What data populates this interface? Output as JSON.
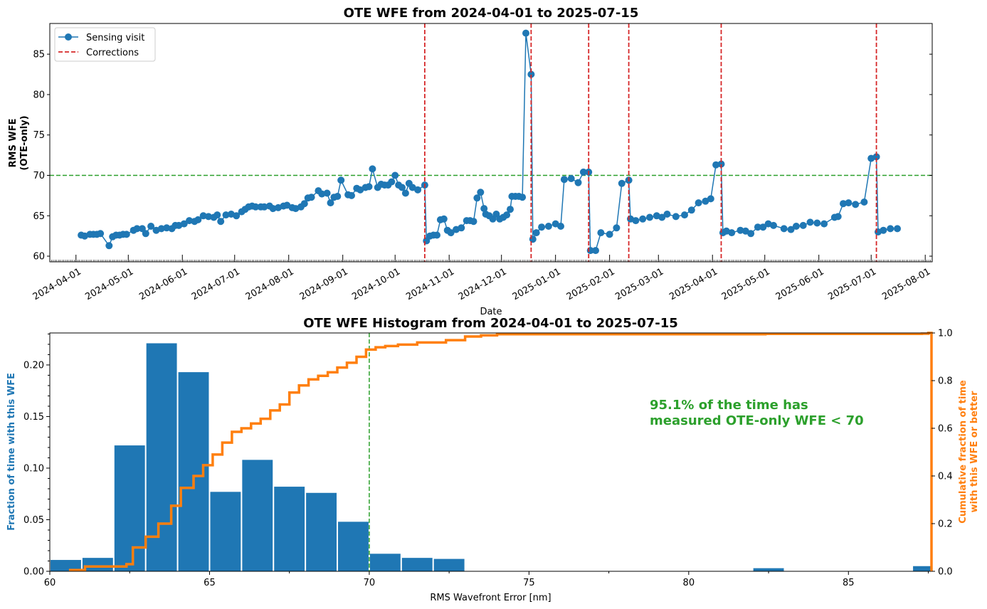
{
  "chart_data": [
    {
      "type": "line",
      "title": "OTE WFE from 2024-04-01 to 2025-07-15",
      "xlabel": "Date",
      "ylabel": "RMS WFE\n(OTE-only)",
      "xlim": [
        "2024-03-17",
        "2025-08-05"
      ],
      "ylim": [
        59.3,
        88.8
      ],
      "yticks": [
        60,
        65,
        70,
        75,
        80,
        85
      ],
      "xticks": [
        "2024-04-01",
        "2024-05-01",
        "2024-06-01",
        "2024-07-01",
        "2024-08-01",
        "2024-09-01",
        "2024-10-01",
        "2024-11-01",
        "2024-12-01",
        "2025-01-01",
        "2025-02-01",
        "2025-03-01",
        "2025-04-01",
        "2025-05-01",
        "2025-06-01",
        "2025-07-01",
        "2025-08-01"
      ],
      "legend_position": "top-left",
      "colors": {
        "series": "#1f77b4",
        "corrections": "#d62728",
        "threshold": "#2ca02c"
      },
      "series": [
        {
          "name": "Sensing visit",
          "points": [
            [
              "2024-04-04",
              62.6
            ],
            [
              "2024-04-06",
              62.5
            ],
            [
              "2024-04-09",
              62.7
            ],
            [
              "2024-04-11",
              62.7
            ],
            [
              "2024-04-13",
              62.7
            ],
            [
              "2024-04-15",
              62.8
            ],
            [
              "2024-04-20",
              61.3
            ],
            [
              "2024-04-22",
              62.4
            ],
            [
              "2024-04-24",
              62.6
            ],
            [
              "2024-04-26",
              62.6
            ],
            [
              "2024-04-28",
              62.7
            ],
            [
              "2024-04-30",
              62.7
            ],
            [
              "2024-05-04",
              63.2
            ],
            [
              "2024-05-06",
              63.4
            ],
            [
              "2024-05-09",
              63.4
            ],
            [
              "2024-05-11",
              62.8
            ],
            [
              "2024-05-14",
              63.7
            ],
            [
              "2024-05-17",
              63.2
            ],
            [
              "2024-05-20",
              63.4
            ],
            [
              "2024-05-23",
              63.5
            ],
            [
              "2024-05-26",
              63.4
            ],
            [
              "2024-05-28",
              63.8
            ],
            [
              "2024-05-30",
              63.8
            ],
            [
              "2024-06-02",
              64.0
            ],
            [
              "2024-06-05",
              64.4
            ],
            [
              "2024-06-08",
              64.3
            ],
            [
              "2024-06-10",
              64.5
            ],
            [
              "2024-06-13",
              65.0
            ],
            [
              "2024-06-16",
              64.9
            ],
            [
              "2024-06-19",
              64.8
            ],
            [
              "2024-06-21",
              65.1
            ],
            [
              "2024-06-23",
              64.3
            ],
            [
              "2024-06-26",
              65.1
            ],
            [
              "2024-06-29",
              65.2
            ],
            [
              "2024-07-02",
              65.0
            ],
            [
              "2024-07-05",
              65.5
            ],
            [
              "2024-07-07",
              65.8
            ],
            [
              "2024-07-09",
              66.1
            ],
            [
              "2024-07-11",
              66.2
            ],
            [
              "2024-07-13",
              66.1
            ],
            [
              "2024-07-16",
              66.1
            ],
            [
              "2024-07-18",
              66.1
            ],
            [
              "2024-07-21",
              66.2
            ],
            [
              "2024-07-23",
              65.9
            ],
            [
              "2024-07-26",
              66.0
            ],
            [
              "2024-07-29",
              66.2
            ],
            [
              "2024-07-31",
              66.3
            ],
            [
              "2024-08-03",
              66.0
            ],
            [
              "2024-08-05",
              65.9
            ],
            [
              "2024-08-08",
              66.1
            ],
            [
              "2024-08-10",
              66.5
            ],
            [
              "2024-08-12",
              67.2
            ],
            [
              "2024-08-14",
              67.3
            ],
            [
              "2024-08-18",
              68.1
            ],
            [
              "2024-08-20",
              67.7
            ],
            [
              "2024-08-23",
              67.8
            ],
            [
              "2024-08-25",
              66.6
            ],
            [
              "2024-08-27",
              67.3
            ],
            [
              "2024-08-29",
              67.4
            ],
            [
              "2024-08-31",
              69.4
            ],
            [
              "2024-09-04",
              67.6
            ],
            [
              "2024-09-06",
              67.5
            ],
            [
              "2024-09-09",
              68.4
            ],
            [
              "2024-09-11",
              68.2
            ],
            [
              "2024-09-14",
              68.5
            ],
            [
              "2024-09-16",
              68.6
            ],
            [
              "2024-09-18",
              70.8
            ],
            [
              "2024-09-21",
              68.5
            ],
            [
              "2024-09-23",
              68.9
            ],
            [
              "2024-09-25",
              68.8
            ],
            [
              "2024-09-27",
              68.8
            ],
            [
              "2024-09-29",
              69.2
            ],
            [
              "2024-10-01",
              70.0
            ],
            [
              "2024-10-03",
              68.8
            ],
            [
              "2024-10-05",
              68.5
            ],
            [
              "2024-10-07",
              67.8
            ],
            [
              "2024-10-09",
              69.0
            ],
            [
              "2024-10-11",
              68.5
            ],
            [
              "2024-10-14",
              68.2
            ],
            [
              "2024-10-18",
              68.8
            ],
            [
              "2024-10-19",
              61.9
            ],
            [
              "2024-10-21",
              62.5
            ],
            [
              "2024-10-23",
              62.6
            ],
            [
              "2024-10-25",
              62.6
            ],
            [
              "2024-10-27",
              64.5
            ],
            [
              "2024-10-29",
              64.6
            ],
            [
              "2024-10-31",
              63.2
            ],
            [
              "2024-11-02",
              62.9
            ],
            [
              "2024-11-05",
              63.3
            ],
            [
              "2024-11-08",
              63.5
            ],
            [
              "2024-11-11",
              64.4
            ],
            [
              "2024-11-13",
              64.4
            ],
            [
              "2024-11-15",
              64.3
            ],
            [
              "2024-11-17",
              67.2
            ],
            [
              "2024-11-19",
              67.9
            ],
            [
              "2024-11-21",
              65.9
            ],
            [
              "2024-11-22",
              65.2
            ],
            [
              "2024-11-24",
              65.0
            ],
            [
              "2024-11-26",
              64.6
            ],
            [
              "2024-11-28",
              65.2
            ],
            [
              "2024-11-30",
              64.6
            ],
            [
              "2024-12-02",
              64.8
            ],
            [
              "2024-12-04",
              65.1
            ],
            [
              "2024-12-06",
              65.8
            ],
            [
              "2024-12-07",
              67.4
            ],
            [
              "2024-12-09",
              67.4
            ],
            [
              "2024-12-11",
              67.4
            ],
            [
              "2024-12-13",
              67.3
            ],
            [
              "2024-12-15",
              87.6
            ],
            [
              "2024-12-18",
              82.5
            ],
            [
              "2024-12-19",
              62.1
            ],
            [
              "2024-12-21",
              62.9
            ],
            [
              "2024-12-24",
              63.6
            ],
            [
              "2024-12-28",
              63.7
            ],
            [
              "2025-01-01",
              64.0
            ],
            [
              "2025-01-04",
              63.7
            ],
            [
              "2025-01-06",
              69.5
            ],
            [
              "2025-01-10",
              69.6
            ],
            [
              "2025-01-14",
              69.1
            ],
            [
              "2025-01-17",
              70.4
            ],
            [
              "2025-01-20",
              70.4
            ],
            [
              "2025-01-21",
              60.7
            ],
            [
              "2025-01-24",
              60.7
            ],
            [
              "2025-01-27",
              62.9
            ],
            [
              "2025-02-01",
              62.7
            ],
            [
              "2025-02-05",
              63.5
            ],
            [
              "2025-02-08",
              69.0
            ],
            [
              "2025-02-12",
              69.4
            ],
            [
              "2025-02-13",
              64.6
            ],
            [
              "2025-02-16",
              64.4
            ],
            [
              "2025-02-20",
              64.6
            ],
            [
              "2025-02-24",
              64.8
            ],
            [
              "2025-02-28",
              65.0
            ],
            [
              "2025-03-03",
              64.8
            ],
            [
              "2025-03-06",
              65.2
            ],
            [
              "2025-03-11",
              64.9
            ],
            [
              "2025-03-16",
              65.1
            ],
            [
              "2025-03-20",
              65.7
            ],
            [
              "2025-03-24",
              66.6
            ],
            [
              "2025-03-28",
              66.8
            ],
            [
              "2025-03-31",
              67.1
            ],
            [
              "2025-04-03",
              71.3
            ],
            [
              "2025-04-06",
              71.4
            ],
            [
              "2025-04-07",
              62.9
            ],
            [
              "2025-04-09",
              63.1
            ],
            [
              "2025-04-12",
              62.9
            ],
            [
              "2025-04-17",
              63.2
            ],
            [
              "2025-04-20",
              63.1
            ],
            [
              "2025-04-23",
              62.8
            ],
            [
              "2025-04-27",
              63.6
            ],
            [
              "2025-04-30",
              63.6
            ],
            [
              "2025-05-03",
              64.0
            ],
            [
              "2025-05-06",
              63.8
            ],
            [
              "2025-05-12",
              63.4
            ],
            [
              "2025-05-16",
              63.3
            ],
            [
              "2025-05-19",
              63.7
            ],
            [
              "2025-05-23",
              63.8
            ],
            [
              "2025-05-27",
              64.2
            ],
            [
              "2025-05-31",
              64.1
            ],
            [
              "2025-06-04",
              64.0
            ],
            [
              "2025-06-10",
              64.8
            ],
            [
              "2025-06-12",
              64.9
            ],
            [
              "2025-06-15",
              66.5
            ],
            [
              "2025-06-18",
              66.6
            ],
            [
              "2025-06-22",
              66.4
            ],
            [
              "2025-06-27",
              66.7
            ],
            [
              "2025-07-01",
              72.1
            ],
            [
              "2025-07-04",
              72.3
            ],
            [
              "2025-07-05",
              63.0
            ],
            [
              "2025-07-08",
              63.2
            ],
            [
              "2025-07-12",
              63.4
            ],
            [
              "2025-07-16",
              63.4
            ]
          ]
        },
        {
          "name": "Corrections",
          "dates": [
            "2024-10-18",
            "2024-12-18",
            "2025-01-20",
            "2025-02-12",
            "2025-04-06",
            "2025-07-04"
          ]
        }
      ],
      "threshold": 70
    },
    {
      "type": "bar",
      "title": "OTE WFE Histogram from 2024-04-01 to 2025-07-15",
      "xlabel": "RMS Wavefront Error [nm]",
      "ylabel": "Fraction of time with this WFE",
      "y2label": "Cumulative fraction of time\nwith this WFE or better",
      "xlim": [
        60,
        87.6
      ],
      "ylim": [
        0,
        0.231
      ],
      "y2lim": [
        0,
        1.0
      ],
      "xticks": [
        60,
        65,
        70,
        75,
        80,
        85
      ],
      "yticks": [
        0.0,
        0.05,
        0.1,
        0.15,
        0.2
      ],
      "y2ticks": [
        0.0,
        0.2,
        0.4,
        0.6,
        0.8,
        1.0
      ],
      "colors": {
        "bars": "#1f77b4",
        "cumulative": "#ff7f0e",
        "threshold": "#2ca02c"
      },
      "bin_width": 1,
      "bins": [
        [
          60,
          0.011
        ],
        [
          61,
          0.013
        ],
        [
          62,
          0.122
        ],
        [
          63,
          0.221
        ],
        [
          64,
          0.193
        ],
        [
          65,
          0.077
        ],
        [
          66,
          0.108
        ],
        [
          67,
          0.082
        ],
        [
          68,
          0.076
        ],
        [
          69,
          0.048
        ],
        [
          70,
          0.017
        ],
        [
          71,
          0.013
        ],
        [
          72,
          0.012
        ],
        [
          82,
          0.003
        ],
        [
          87,
          0.005
        ]
      ],
      "cumulative_step": [
        [
          60.6,
          0.005
        ],
        [
          61.1,
          0.02
        ],
        [
          62.4,
          0.03
        ],
        [
          62.6,
          0.1
        ],
        [
          63.0,
          0.145
        ],
        [
          63.4,
          0.2
        ],
        [
          63.8,
          0.275
        ],
        [
          64.1,
          0.35
        ],
        [
          64.5,
          0.4
        ],
        [
          64.8,
          0.445
        ],
        [
          65.1,
          0.49
        ],
        [
          65.4,
          0.54
        ],
        [
          65.7,
          0.585
        ],
        [
          66.0,
          0.6
        ],
        [
          66.3,
          0.62
        ],
        [
          66.6,
          0.64
        ],
        [
          66.9,
          0.675
        ],
        [
          67.2,
          0.7
        ],
        [
          67.5,
          0.75
        ],
        [
          67.8,
          0.78
        ],
        [
          68.1,
          0.805
        ],
        [
          68.4,
          0.82
        ],
        [
          68.7,
          0.835
        ],
        [
          69.0,
          0.855
        ],
        [
          69.3,
          0.875
        ],
        [
          69.6,
          0.9
        ],
        [
          69.9,
          0.93
        ],
        [
          70.2,
          0.94
        ],
        [
          70.5,
          0.945
        ],
        [
          70.9,
          0.951
        ],
        [
          71.5,
          0.96
        ],
        [
          72.4,
          0.97
        ],
        [
          73.0,
          0.985
        ],
        [
          73.5,
          0.99
        ],
        [
          74.0,
          0.995
        ],
        [
          82.4,
          0.996
        ],
        [
          87.3,
          0.997
        ],
        [
          87.5,
          1.0
        ]
      ],
      "threshold": 70,
      "annotation": "95.1% of the time has\nmeasured OTE-only WFE < 70"
    }
  ]
}
